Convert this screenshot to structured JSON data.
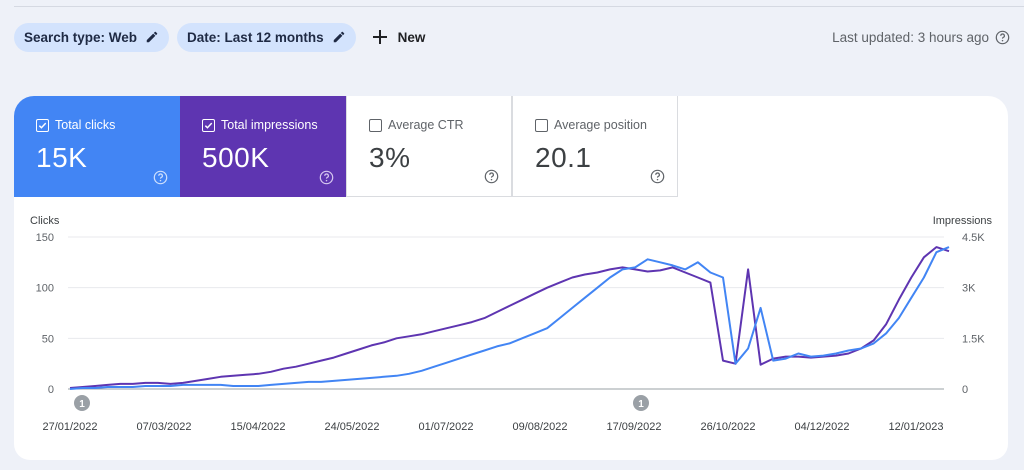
{
  "filters": {
    "search_type": "Search type: Web",
    "date": "Date: Last 12 months",
    "new_label": "New"
  },
  "last_updated": "Last updated: 3 hours ago",
  "metrics": [
    {
      "label": "Total clicks",
      "value": "15K",
      "checked": true,
      "color": "#4285f4"
    },
    {
      "label": "Total impressions",
      "value": "500K",
      "checked": true,
      "color": "#5e35b1"
    },
    {
      "label": "Average CTR",
      "value": "3%",
      "checked": false
    },
    {
      "label": "Average position",
      "value": "20.1",
      "checked": false
    }
  ],
  "chart_data": {
    "type": "line",
    "left_axis_label": "Clicks",
    "right_axis_label": "Impressions",
    "left_ylim": [
      0,
      150
    ],
    "right_ylim": [
      0,
      4500
    ],
    "left_ticks": [
      "150",
      "100",
      "50",
      "0"
    ],
    "right_ticks": [
      "4.5K",
      "3K",
      "1.5K",
      "0"
    ],
    "x_tick_labels": [
      "27/01/2022",
      "07/03/2022",
      "15/04/2022",
      "24/05/2022",
      "01/07/2022",
      "09/08/2022",
      "17/09/2022",
      "26/10/2022",
      "04/12/2022",
      "12/01/2023"
    ],
    "annotations": [
      "1",
      "1"
    ],
    "grid": true,
    "series": [
      {
        "name": "Clicks",
        "axis": "left",
        "color": "#4285f4",
        "approx_weekly_values": [
          0,
          1,
          1,
          2,
          2,
          2,
          3,
          3,
          3,
          4,
          4,
          4,
          4,
          3,
          3,
          3,
          4,
          5,
          6,
          7,
          7,
          8,
          9,
          10,
          11,
          12,
          13,
          15,
          18,
          22,
          26,
          30,
          34,
          38,
          42,
          45,
          50,
          55,
          60,
          70,
          80,
          90,
          100,
          110,
          118,
          120,
          128,
          125,
          122,
          118,
          125,
          115,
          110,
          25,
          40,
          80,
          28,
          30,
          35,
          32,
          33,
          35,
          38,
          40,
          45,
          55,
          70,
          90,
          110,
          135,
          140
        ]
      },
      {
        "name": "Impressions",
        "axis": "right",
        "color": "#5e35b1",
        "approx_weekly_values": [
          30,
          60,
          90,
          120,
          150,
          150,
          180,
          180,
          150,
          180,
          240,
          300,
          360,
          390,
          420,
          450,
          510,
          600,
          660,
          750,
          840,
          930,
          1050,
          1170,
          1290,
          1380,
          1500,
          1560,
          1620,
          1710,
          1800,
          1890,
          1980,
          2100,
          2280,
          2460,
          2640,
          2820,
          3000,
          3150,
          3300,
          3390,
          3450,
          3540,
          3600,
          3540,
          3480,
          3510,
          3600,
          3450,
          3300,
          3150,
          840,
          750,
          3540,
          720,
          900,
          960,
          960,
          930,
          960,
          990,
          1050,
          1200,
          1440,
          1920,
          2640,
          3300,
          3900,
          4200,
          4080
        ]
      }
    ]
  }
}
